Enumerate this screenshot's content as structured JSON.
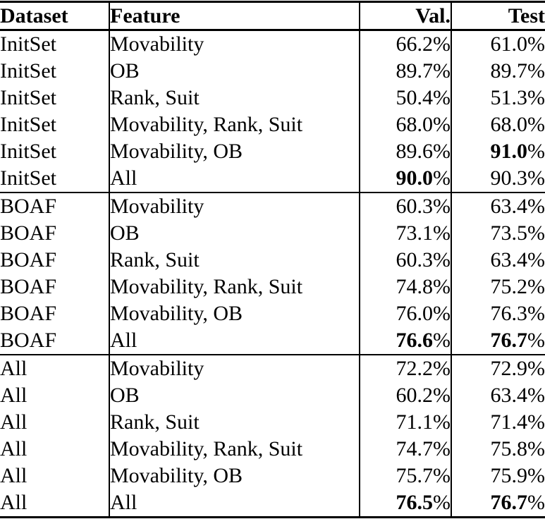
{
  "table": {
    "unit": "%",
    "headers": [
      "Dataset",
      "Feature",
      "Val.",
      "Test"
    ],
    "sections": [
      {
        "dataset_group": "InitSet",
        "rows": [
          {
            "dataset": "InitSet",
            "feature": "Movability",
            "val": "66.2",
            "test": "61.0",
            "val_bold": false,
            "test_bold": false
          },
          {
            "dataset": "InitSet",
            "feature": "OB",
            "val": "89.7",
            "test": "89.7",
            "val_bold": false,
            "test_bold": false
          },
          {
            "dataset": "InitSet",
            "feature": "Rank, Suit",
            "val": "50.4",
            "test": "51.3",
            "val_bold": false,
            "test_bold": false
          },
          {
            "dataset": "InitSet",
            "feature": "Movability, Rank, Suit",
            "val": "68.0",
            "test": "68.0",
            "val_bold": false,
            "test_bold": false
          },
          {
            "dataset": "InitSet",
            "feature": "Movability, OB",
            "val": "89.6",
            "test": "91.0",
            "val_bold": false,
            "test_bold": true
          },
          {
            "dataset": "InitSet",
            "feature": "All",
            "val": "90.0",
            "test": "90.3",
            "val_bold": true,
            "test_bold": false
          }
        ]
      },
      {
        "dataset_group": "BOAF",
        "rows": [
          {
            "dataset": "BOAF",
            "feature": "Movability",
            "val": "60.3",
            "test": "63.4",
            "val_bold": false,
            "test_bold": false
          },
          {
            "dataset": "BOAF",
            "feature": "OB",
            "val": "73.1",
            "test": "73.5",
            "val_bold": false,
            "test_bold": false
          },
          {
            "dataset": "BOAF",
            "feature": "Rank, Suit",
            "val": "60.3",
            "test": "63.4",
            "val_bold": false,
            "test_bold": false
          },
          {
            "dataset": "BOAF",
            "feature": "Movability, Rank, Suit",
            "val": "74.8",
            "test": "75.2",
            "val_bold": false,
            "test_bold": false
          },
          {
            "dataset": "BOAF",
            "feature": "Movability, OB",
            "val": "76.0",
            "test": "76.3",
            "val_bold": false,
            "test_bold": false
          },
          {
            "dataset": "BOAF",
            "feature": "All",
            "val": "76.6",
            "test": "76.7",
            "val_bold": true,
            "test_bold": true
          }
        ]
      },
      {
        "dataset_group": "All",
        "rows": [
          {
            "dataset": "All",
            "feature": "Movability",
            "val": "72.2",
            "test": "72.9",
            "val_bold": false,
            "test_bold": false
          },
          {
            "dataset": "All",
            "feature": "OB",
            "val": "60.2",
            "test": "63.4",
            "val_bold": false,
            "test_bold": false
          },
          {
            "dataset": "All",
            "feature": "Rank, Suit",
            "val": "71.1",
            "test": "71.4",
            "val_bold": false,
            "test_bold": false
          },
          {
            "dataset": "All",
            "feature": "Movability, Rank, Suit",
            "val": "74.7",
            "test": "75.8",
            "val_bold": false,
            "test_bold": false
          },
          {
            "dataset": "All",
            "feature": "Movability, OB",
            "val": "75.7",
            "test": "75.9",
            "val_bold": false,
            "test_bold": false
          },
          {
            "dataset": "All",
            "feature": "All",
            "val": "76.5",
            "test": "76.7",
            "val_bold": true,
            "test_bold": true
          }
        ]
      }
    ]
  }
}
